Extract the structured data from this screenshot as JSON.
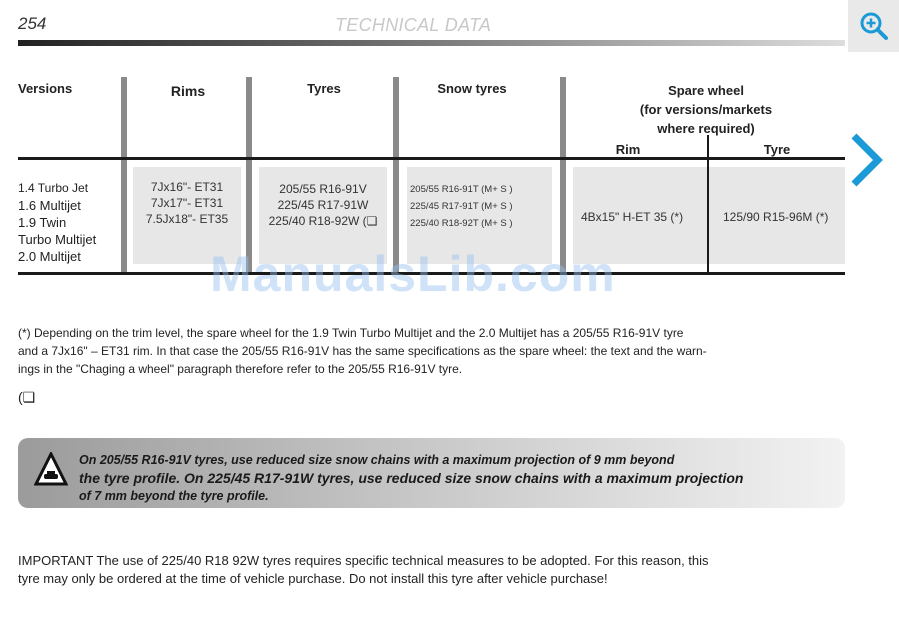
{
  "header": {
    "page_number": "254",
    "title": "TECHNICAL DATA"
  },
  "toolbar": {
    "zoom_icon": "zoom-in-icon",
    "next_icon": "chevron-right-icon",
    "accent": "#1a9ad6"
  },
  "table": {
    "headers": {
      "versions": "Versions",
      "rims": "Rims",
      "tyres": "Tyres",
      "snow_tyres": "Snow tyres",
      "spare_wheel": [
        "Spare wheel",
        "(for versions/markets",
        "where required)"
      ],
      "spare_rim": "Rim",
      "spare_tyre": "Tyre"
    },
    "versions": [
      "1.4 Turbo Jet",
      "1.6 Multijet",
      "1.9 Twin",
      "Turbo Multijet",
      "2.0 Multijet"
    ],
    "rims": [
      "7Jx16\"- ET31",
      "7Jx17\"- ET31",
      "7.5Jx18\"- ET35"
    ],
    "tyres": [
      "205/55 R16-91V",
      "225/45 R17-91W",
      "225/40 R18-92W  (❏"
    ],
    "snow_tyres": [
      "205/55 R16-91T (M+ S )",
      "225/45 R17-91T (M+ S )",
      "225/40 R18-92T (M+ S )"
    ],
    "spare_rim": "4Bx15\" H-ET 35 (*)",
    "spare_tyre": "125/90 R15-96M (*)"
  },
  "footnote": [
    "(*) Depending on the trim level, the spare wheel for the 1.9 Twin Turbo Multijet and the 2.0 Multijet has a 205/55 R16-91V tyre",
    "and a 7Jx16\" – ET31 rim. In that case the 205/55 R16-91V has the same specifications as the spare wheel: the text and the warn-",
    "ings in the \"Chaging a wheel\" paragraph therefore refer to the 205/55 R16-91V tyre."
  ],
  "symbol_note": "(❏",
  "warning": {
    "icon": "snow-chains-warning-icon",
    "lines": [
      "On 205/55 R16-91V tyres, use reduced size snow chains with a maximum projection of 9 mm beyond",
      "the tyre profile. On 225/45 R17-91W tyres, use reduced size snow chains with a maximum projection",
      "of 7 mm beyond the tyre profile."
    ]
  },
  "important": [
    "IMPORTANT The use of 225/40 R18 92W tyres requires specific technical measures to be adopted. For this reason, this",
    "tyre may only be ordered at the time of vehicle purchase. Do not install this tyre after vehicle purchase!"
  ],
  "watermark": "ManualsLib.com"
}
